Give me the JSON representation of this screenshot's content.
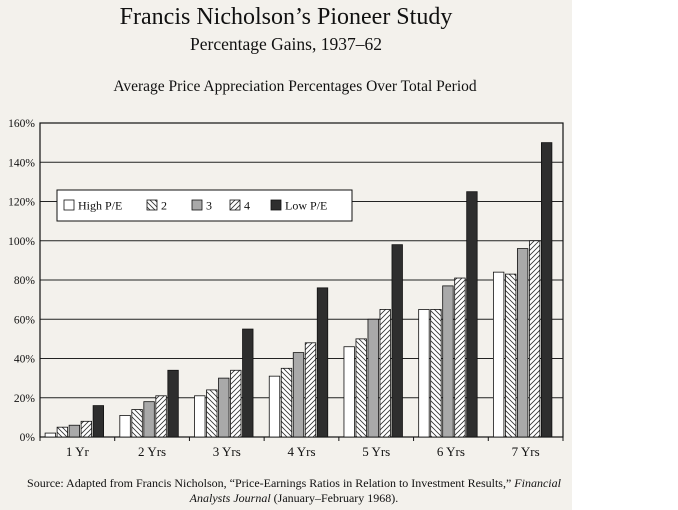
{
  "title": "Francis Nicholson’s Pioneer Study",
  "subtitle": "Percentage Gains, 1937–62",
  "chart_heading": "Average Price Appreciation Percentages Over Total Period",
  "source": {
    "prefix": "Source: Adapted from Francis Nicholson, “Price-Earnings Ratios in Relation to Investment Results,” ",
    "journal": "Financial Analysts Journal",
    "suffix": " (January–February 1968)."
  },
  "chart_data": {
    "type": "bar",
    "title": "Average Price Appreciation Percentages Over Total Period",
    "xlabel": "",
    "ylabel": "",
    "ylim": [
      0,
      160
    ],
    "yticks": [
      0,
      20,
      40,
      60,
      80,
      100,
      120,
      140,
      160
    ],
    "ytick_labels": [
      "0%",
      "20%",
      "40%",
      "60%",
      "80%",
      "100%",
      "120%",
      "140%",
      "160%"
    ],
    "grid": true,
    "legend_position": "upper-left",
    "categories": [
      "1 Yr",
      "2 Yrs",
      "3 Yrs",
      "4 Yrs",
      "5 Yrs",
      "6 Yrs",
      "7 Yrs"
    ],
    "series": [
      {
        "name": "High P/E",
        "pattern": "white",
        "values": [
          2,
          11,
          21,
          31,
          46,
          65,
          84
        ]
      },
      {
        "name": "2",
        "pattern": "hatch-back",
        "values": [
          5,
          14,
          24,
          35,
          50,
          65,
          83
        ]
      },
      {
        "name": "3",
        "pattern": "gray",
        "values": [
          6,
          18,
          30,
          43,
          60,
          77,
          96
        ]
      },
      {
        "name": "4",
        "pattern": "hatch-fwd",
        "values": [
          8,
          21,
          34,
          48,
          65,
          81,
          100
        ]
      },
      {
        "name": "Low P/E",
        "pattern": "dark",
        "values": [
          16,
          34,
          55,
          76,
          98,
          125,
          150
        ]
      }
    ],
    "colors": {
      "gray": "#a9a9a9",
      "dark": "#2e2e2e",
      "grid": "#222222"
    }
  }
}
